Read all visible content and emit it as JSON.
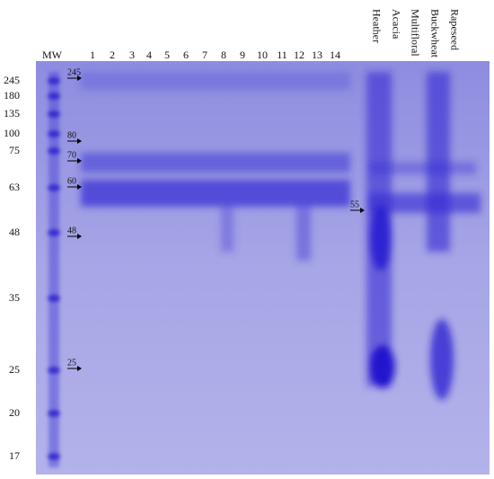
{
  "gel": {
    "marker_label": "MW",
    "marker_sizes": [
      "245",
      "180",
      "135",
      "100",
      "75",
      "63",
      "48",
      "35",
      "25",
      "20",
      "17"
    ],
    "lanes": [
      "1",
      "2",
      "3",
      "4",
      "5",
      "6",
      "7",
      "8",
      "9",
      "10",
      "11",
      "12",
      "13",
      "14"
    ],
    "honey_lanes": [
      "Heather",
      "Acacia",
      "Multifloral",
      "Buckwheat",
      "Rapeseed"
    ],
    "arrows": [
      "245",
      "80",
      "70",
      "60",
      "48",
      "25",
      "55"
    ]
  }
}
